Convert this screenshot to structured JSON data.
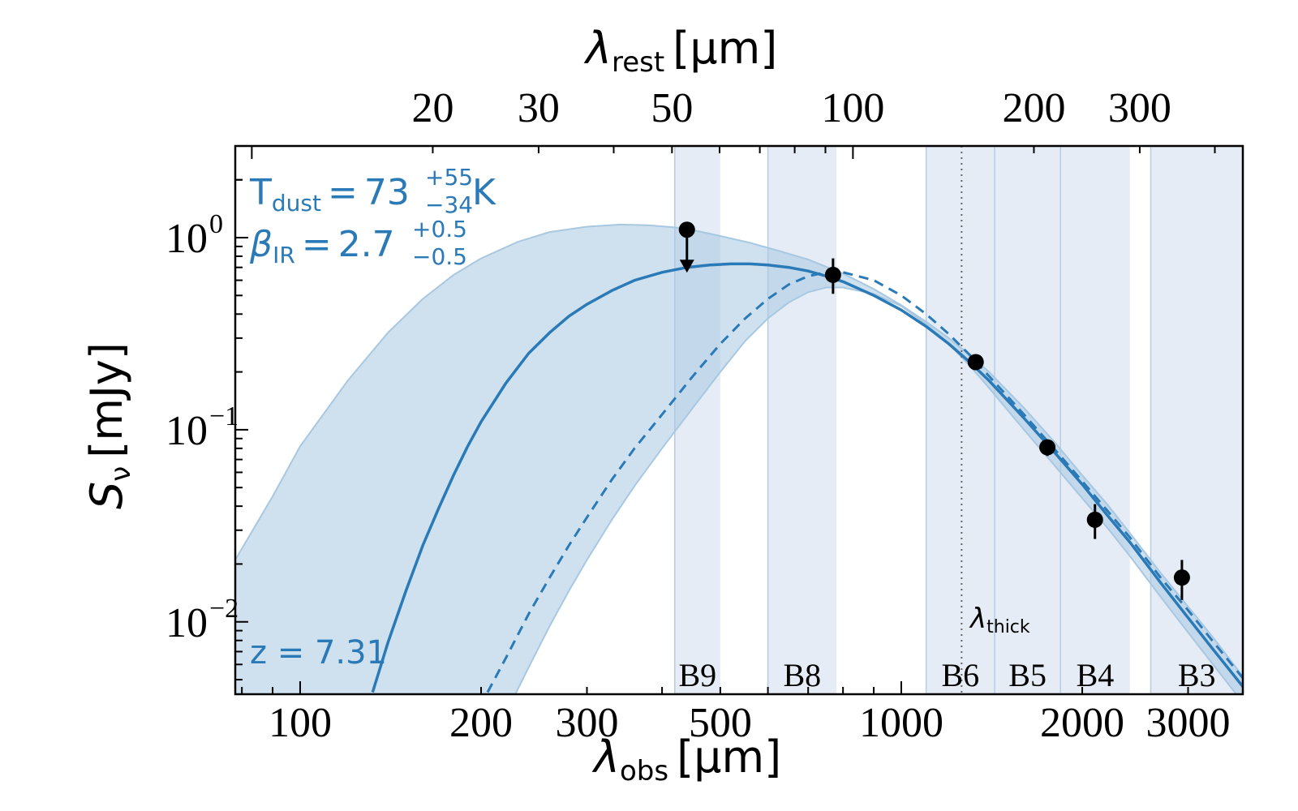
{
  "chart_data": {
    "type": "scatter",
    "xscale": "log",
    "yscale": "log",
    "xlim": [
      78,
      3700
    ],
    "ylim": [
      0.0042,
      3.0
    ],
    "top_xlim": [
      9.39,
      445.4
    ],
    "redshift": 7.31,
    "xlabel": {
      "base": "λ",
      "sub": "obs",
      "unit": "[μm]"
    },
    "ylabel": {
      "base": "S",
      "sub": "ν",
      "unit": "[mJy]"
    },
    "top_xlabel": {
      "base": "λ",
      "sub": "rest",
      "unit": "[μm]"
    },
    "x_ticks": [
      {
        "value": 100,
        "label": "100"
      },
      {
        "value": 200,
        "label": "200"
      },
      {
        "value": 300,
        "label": "300"
      },
      {
        "value": 500,
        "label": "500"
      },
      {
        "value": 1000,
        "label": "1000"
      },
      {
        "value": 2000,
        "label": "2000"
      },
      {
        "value": 3000,
        "label": "3000"
      }
    ],
    "top_x_ticks": [
      {
        "value": 20,
        "label": "20"
      },
      {
        "value": 30,
        "label": "30"
      },
      {
        "value": 50,
        "label": "50"
      },
      {
        "value": 100,
        "label": "100"
      },
      {
        "value": 200,
        "label": "200"
      },
      {
        "value": 300,
        "label": "300"
      }
    ],
    "y_ticks": [
      {
        "value": 1,
        "mantissa": "10",
        "exponent": "0"
      },
      {
        "value": 0.1,
        "mantissa": "10",
        "exponent": "−1"
      },
      {
        "value": 0.01,
        "mantissa": "10",
        "exponent": "−2"
      }
    ],
    "bands": [
      {
        "name": "B9",
        "x0": 420,
        "x1": 500
      },
      {
        "name": "B8",
        "x0": 600,
        "x1": 780
      },
      {
        "name": "B6",
        "x0": 1100,
        "x1": 1430
      },
      {
        "name": "B5",
        "x0": 1430,
        "x1": 1840
      },
      {
        "name": "B4",
        "x0": 1840,
        "x1": 2400
      },
      {
        "name": "B3",
        "x0": 2600,
        "x1": 3700
      }
    ],
    "lambda_thick": {
      "x": 1260,
      "label_base": "λ",
      "label_sub": "thick"
    },
    "model_solid": {
      "x": [
        132,
        140,
        150,
        160,
        170,
        180,
        190,
        200,
        220,
        240,
        260,
        280,
        300,
        330,
        360,
        400,
        440,
        480,
        520,
        560,
        600,
        650,
        700,
        750,
        800,
        900,
        1000,
        1100,
        1200,
        1300,
        1400,
        1600,
        1800,
        2000,
        2200,
        2400,
        2700,
        3000,
        3300,
        3700
      ],
      "y": [
        0.0043,
        0.0078,
        0.0145,
        0.025,
        0.039,
        0.058,
        0.082,
        0.11,
        0.175,
        0.25,
        0.32,
        0.39,
        0.45,
        0.53,
        0.6,
        0.66,
        0.7,
        0.72,
        0.73,
        0.73,
        0.72,
        0.7,
        0.67,
        0.63,
        0.59,
        0.5,
        0.42,
        0.345,
        0.28,
        0.225,
        0.18,
        0.115,
        0.076,
        0.052,
        0.036,
        0.026,
        0.016,
        0.0105,
        0.0072,
        0.0046
      ]
    },
    "model_dashed": {
      "x": [
        205,
        220,
        240,
        260,
        280,
        300,
        330,
        360,
        400,
        450,
        500,
        550,
        600,
        650,
        700,
        750,
        800,
        900,
        1000,
        1100,
        1200,
        1300,
        1400,
        1600,
        1800,
        2000,
        2200,
        2400,
        2700,
        3000,
        3300,
        3700
      ],
      "y": [
        0.0043,
        0.0065,
        0.011,
        0.017,
        0.025,
        0.035,
        0.055,
        0.08,
        0.12,
        0.19,
        0.28,
        0.38,
        0.48,
        0.57,
        0.63,
        0.66,
        0.66,
        0.6,
        0.5,
        0.4,
        0.315,
        0.245,
        0.19,
        0.12,
        0.079,
        0.054,
        0.038,
        0.0275,
        0.017,
        0.0115,
        0.0079,
        0.0051
      ]
    },
    "band_upper": {
      "x": [
        78,
        90,
        100,
        120,
        140,
        160,
        180,
        200,
        230,
        260,
        300,
        340,
        380,
        420,
        460,
        500,
        560,
        620,
        700,
        800,
        900,
        1000,
        1100,
        1200,
        1300,
        1400,
        1600,
        1800,
        2000,
        2200,
        2400,
        2700,
        3000,
        3300,
        3700
      ],
      "y": [
        0.021,
        0.045,
        0.082,
        0.18,
        0.32,
        0.48,
        0.64,
        0.78,
        0.95,
        1.07,
        1.14,
        1.17,
        1.16,
        1.13,
        1.08,
        1.02,
        0.94,
        0.86,
        0.77,
        0.65,
        0.54,
        0.445,
        0.365,
        0.3,
        0.245,
        0.2,
        0.13,
        0.086,
        0.058,
        0.041,
        0.029,
        0.018,
        0.012,
        0.0083,
        0.0052
      ]
    },
    "band_lower": {
      "x": [
        228,
        240,
        260,
        280,
        300,
        330,
        360,
        400,
        450,
        500,
        550,
        600,
        650,
        700,
        750,
        800,
        900,
        1000,
        1100,
        1200,
        1300,
        1400,
        1600,
        1800,
        2000,
        2200,
        2400,
        2700,
        3000,
        3300,
        3700
      ],
      "y": [
        0.0042,
        0.0058,
        0.0095,
        0.0145,
        0.021,
        0.034,
        0.051,
        0.08,
        0.13,
        0.2,
        0.29,
        0.38,
        0.46,
        0.52,
        0.55,
        0.55,
        0.51,
        0.44,
        0.355,
        0.28,
        0.215,
        0.165,
        0.1,
        0.065,
        0.044,
        0.031,
        0.022,
        0.0135,
        0.0088,
        0.006,
        0.0038
      ]
    },
    "points": [
      {
        "x": 440,
        "y": 1.1,
        "yerr_low": 0.0,
        "yerr_high": 0.0,
        "upper_limit": true,
        "arrow_to": 0.67
      },
      {
        "x": 770,
        "y": 0.64,
        "yerr_low": 0.13,
        "yerr_high": 0.14,
        "upper_limit": false
      },
      {
        "x": 1330,
        "y": 0.225,
        "yerr_low": 0.012,
        "yerr_high": 0.012,
        "upper_limit": false
      },
      {
        "x": 1750,
        "y": 0.081,
        "yerr_low": 0.008,
        "yerr_high": 0.008,
        "upper_limit": false
      },
      {
        "x": 2100,
        "y": 0.034,
        "yerr_low": 0.007,
        "yerr_high": 0.007,
        "upper_limit": false
      },
      {
        "x": 2930,
        "y": 0.017,
        "yerr_low": 0.004,
        "yerr_high": 0.004,
        "upper_limit": false
      }
    ],
    "colors": {
      "model": "#2a7ab7",
      "envelope": "#a8c8e1",
      "band_fill": "#cfdcee",
      "points": "#000000"
    },
    "annotations": {
      "tdust": {
        "prefix": "T",
        "sub": "dust",
        "eq": "=",
        "value": "73",
        "sup": "+55",
        "low": "−34",
        "unit": "K"
      },
      "beta": {
        "prefix": "β",
        "sub": "IR",
        "eq": "=",
        "value": "2.7",
        "sup": "+0.5",
        "low": "−0.5"
      },
      "z": "z = 7.31"
    }
  }
}
